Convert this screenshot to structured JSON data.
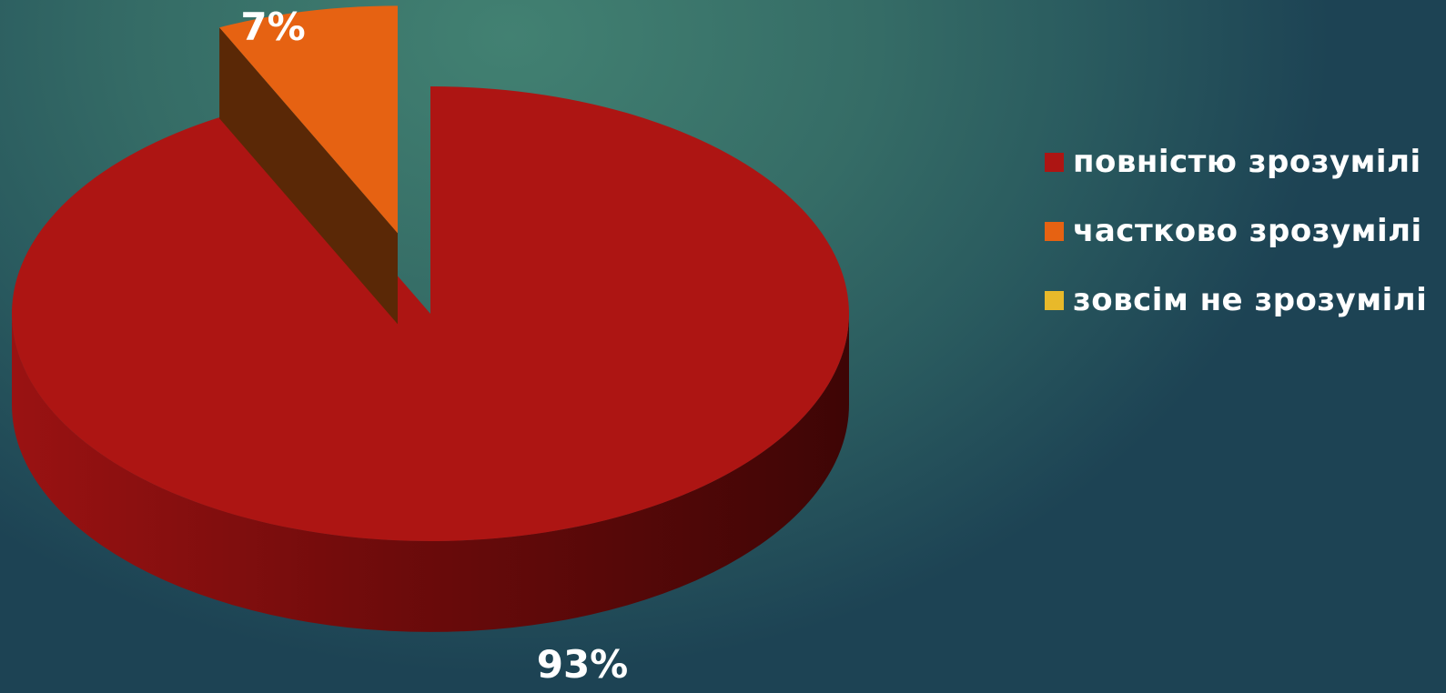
{
  "chart_data": {
    "type": "pie",
    "style": "3d-exploded",
    "categories": [
      "повністю зрозумілі",
      "частково зрозумілі",
      "зовсім не зрозумілі"
    ],
    "values": [
      93,
      7,
      0
    ],
    "value_labels": [
      "93%",
      "7%",
      ""
    ],
    "colors": [
      "#ad1513",
      "#e66212",
      "#e8b92a"
    ],
    "legend_position": "right",
    "title": ""
  },
  "legend": {
    "items": [
      {
        "label": "повністю зрозумілі",
        "color": "#ad1513"
      },
      {
        "label": "частково зрозумілі",
        "color": "#e66212"
      },
      {
        "label": "зовсім не зрозумілі",
        "color": "#e8b92a"
      }
    ]
  },
  "colors": {
    "background_light": "#428172",
    "background_dark": "#1d4354",
    "side_red_dark": "#4a0606",
    "side_orange_dark": "#5a2806",
    "label_text": "#ffffff"
  }
}
